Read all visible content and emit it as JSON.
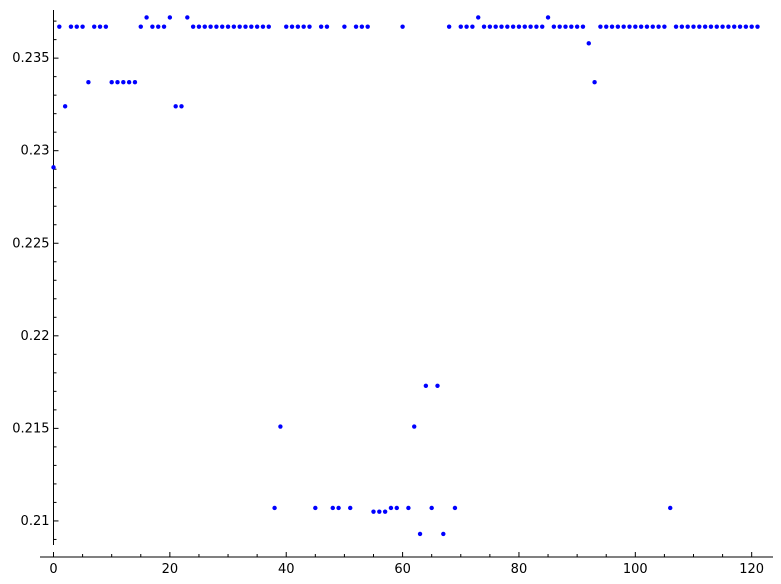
{
  "chart_data": {
    "type": "scatter",
    "title": "",
    "xlabel": "",
    "ylabel": "",
    "xlim": [
      -2,
      123
    ],
    "ylim": [
      0.2087,
      0.2376
    ],
    "x_ticks": [
      0,
      20,
      40,
      60,
      80,
      100,
      120
    ],
    "x_tick_labels": [
      "0",
      "20",
      "40",
      "60",
      "80",
      "100",
      "120"
    ],
    "x_minor_step": 5,
    "y_ticks": [
      0.21,
      0.215,
      0.22,
      0.225,
      0.23,
      0.235
    ],
    "y_tick_labels": [
      "0.21",
      "0.215",
      "0.22",
      "0.225",
      "0.23",
      "0.235"
    ],
    "y_minor_step": 0.001,
    "grid": false,
    "legend": "none",
    "point_color": "#0000ff",
    "series": [
      {
        "x": [
          0,
          1,
          2,
          3,
          4,
          5,
          6,
          7,
          8,
          9,
          10,
          11,
          12,
          13,
          14,
          15,
          16,
          17,
          18,
          19,
          20,
          21,
          22,
          23,
          24,
          25,
          26,
          27,
          28,
          29,
          30,
          31,
          32,
          33,
          34,
          35,
          36,
          37,
          38,
          39,
          40,
          41,
          42,
          43,
          44,
          45,
          46,
          47,
          48,
          49,
          50,
          51,
          52,
          53,
          54,
          55,
          56,
          57,
          58,
          59,
          60,
          61,
          62,
          63,
          64,
          65,
          66,
          67,
          68,
          69,
          70,
          71,
          72,
          73,
          74,
          75,
          76,
          77,
          78,
          79,
          80,
          81,
          82,
          83,
          84,
          85,
          86,
          87,
          88,
          89,
          90,
          91,
          92,
          93,
          94,
          95,
          96,
          97,
          98,
          99,
          100,
          101,
          102,
          103,
          104,
          105,
          106,
          107,
          108,
          109,
          110,
          111,
          112,
          113,
          114,
          115,
          116,
          117,
          118,
          119,
          120,
          121
        ],
        "y": [
          0.2291,
          0.2367,
          0.2324,
          0.2367,
          0.2367,
          0.2367,
          0.2337,
          0.2367,
          0.2367,
          0.2367,
          0.2337,
          0.2337,
          0.2337,
          0.2337,
          0.2337,
          0.2367,
          0.2372,
          0.2367,
          0.2367,
          0.2367,
          0.2372,
          0.2324,
          0.2324,
          0.2372,
          0.2367,
          0.2367,
          0.2367,
          0.2367,
          0.2367,
          0.2367,
          0.2367,
          0.2367,
          0.2367,
          0.2367,
          0.2367,
          0.2367,
          0.2367,
          0.2367,
          0.2107,
          0.2151,
          0.2367,
          0.2367,
          0.2367,
          0.2367,
          0.2367,
          0.2107,
          0.2367,
          0.2367,
          0.2107,
          0.2107,
          0.2367,
          0.2107,
          0.2367,
          0.2367,
          0.2367,
          0.2105,
          0.2105,
          0.2105,
          0.2107,
          0.2107,
          0.2367,
          0.2107,
          0.2151,
          0.2093,
          0.2173,
          0.2107,
          0.2173,
          0.2093,
          0.2367,
          0.2107,
          0.2367,
          0.2367,
          0.2367,
          0.2372,
          0.2367,
          0.2367,
          0.2367,
          0.2367,
          0.2367,
          0.2367,
          0.2367,
          0.2367,
          0.2367,
          0.2367,
          0.2367,
          0.2372,
          0.2367,
          0.2367,
          0.2367,
          0.2367,
          0.2367,
          0.2367,
          0.2358,
          0.2337,
          0.2367,
          0.2367,
          0.2367,
          0.2367,
          0.2367,
          0.2367,
          0.2367,
          0.2367,
          0.2367,
          0.2367,
          0.2367,
          0.2367,
          0.2107,
          0.2367,
          0.2367,
          0.2367,
          0.2367,
          0.2367,
          0.2367,
          0.2367,
          0.2367,
          0.2367,
          0.2367,
          0.2367,
          0.2367,
          0.2367,
          0.2367,
          0.2367
        ]
      }
    ]
  }
}
